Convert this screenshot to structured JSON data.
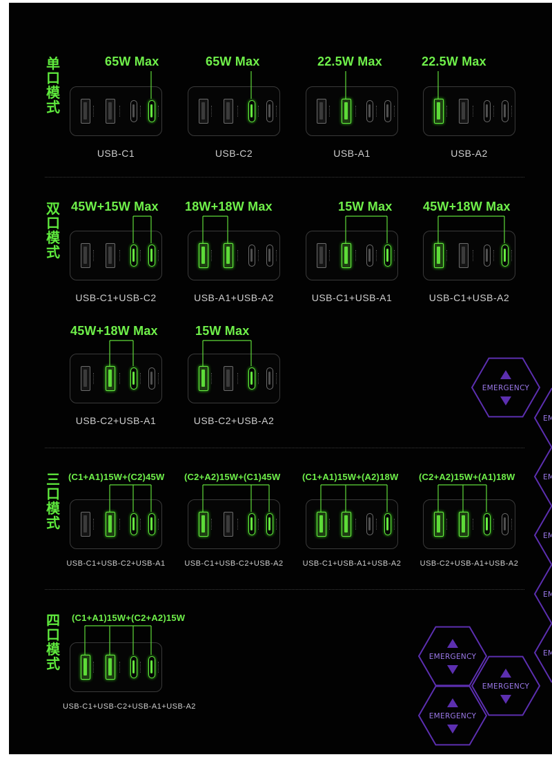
{
  "modes": [
    {
      "id": "single",
      "label": [
        "单",
        "口",
        "模",
        "式"
      ]
    },
    {
      "id": "dual",
      "label": [
        "双",
        "口",
        "模",
        "式"
      ]
    },
    {
      "id": "triple",
      "label": [
        "三",
        "口",
        "模",
        "式"
      ]
    },
    {
      "id": "quad",
      "label": [
        "四",
        "口",
        "模",
        "式"
      ]
    }
  ],
  "cards": [
    {
      "mode": "single",
      "power": "65W Max",
      "combo": "USB-C1",
      "active": [
        "C1"
      ]
    },
    {
      "mode": "single",
      "power": "65W Max",
      "combo": "USB-C2",
      "active": [
        "C2"
      ]
    },
    {
      "mode": "single",
      "power": "22.5W Max",
      "combo": "USB-A1",
      "active": [
        "A1"
      ]
    },
    {
      "mode": "single",
      "power": "22.5W Max",
      "combo": "USB-A2",
      "active": [
        "A2"
      ]
    },
    {
      "mode": "dual",
      "power": "45W+15W Max",
      "combo": "USB-C1+USB-C2",
      "active": [
        "C2",
        "C1"
      ]
    },
    {
      "mode": "dual",
      "power": "18W+18W Max",
      "combo": "USB-A1+USB-A2",
      "active": [
        "A2",
        "A1"
      ]
    },
    {
      "mode": "dual",
      "power": "15W Max",
      "combo": "USB-C1+USB-A1",
      "active": [
        "A1",
        "C1"
      ]
    },
    {
      "mode": "dual",
      "power": "45W+18W Max",
      "combo": "USB-C1+USB-A2",
      "active": [
        "A2",
        "C1"
      ]
    },
    {
      "mode": "dual",
      "power": "45W+18W Max",
      "combo": "USB-C2+USB-A1",
      "active": [
        "A1",
        "C2"
      ]
    },
    {
      "mode": "dual",
      "power": "15W Max",
      "combo": "USB-C2+USB-A2",
      "active": [
        "A2",
        "C2"
      ]
    },
    {
      "mode": "triple",
      "power": "(C1+A1)15W+(C2)45W",
      "combo": "USB-C1+USB-C2+USB-A1",
      "active": [
        "A1",
        "C2",
        "C1"
      ]
    },
    {
      "mode": "triple",
      "power": "(C2+A2)15W+(C1)45W",
      "combo": "USB-C1+USB-C2+USB-A2",
      "active": [
        "A2",
        "C2",
        "C1"
      ]
    },
    {
      "mode": "triple",
      "power": "(C1+A1)15W+(A2)18W",
      "combo": "USB-C1+USB-A1+USB-A2",
      "active": [
        "A2",
        "A1",
        "C1"
      ]
    },
    {
      "mode": "triple",
      "power": "(C2+A2)15W+(A1)18W",
      "combo": "USB-C2+USB-A1+USB-A2",
      "active": [
        "A2",
        "A1",
        "C2"
      ]
    },
    {
      "mode": "quad",
      "power": "(C1+A1)15W+(C2+A2)15W",
      "combo": "USB-C1+USB-C2+USB-A1+USB-A2",
      "active": [
        "A2",
        "A1",
        "C2",
        "C1"
      ]
    }
  ],
  "port_order": [
    "A2",
    "A1",
    "C2",
    "C1"
  ],
  "watermark": {
    "text": "EMERGENCY",
    "text_cropped": "EME",
    "icon_top": "triangle-up",
    "icon_bottom": "triangle-down"
  },
  "colors": {
    "background": "#020202",
    "accent_green": "#67f040",
    "port_off": "#6d6d6d",
    "caption": "#cfcfcf",
    "watermark_purple": "#5c2fb0",
    "watermark_text": "#9a78e8"
  }
}
